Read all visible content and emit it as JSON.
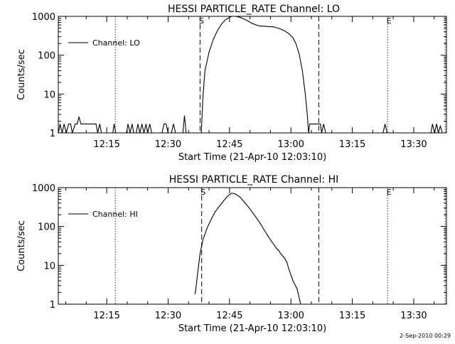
{
  "footer": {
    "timestamp": "2-Sep-2010 00:29"
  },
  "chart_data": [
    {
      "type": "line",
      "title": "HESSI PARTICLE_RATE Channel: LO",
      "xlabel": "Start Time (21-Apr-10 12:03:10)",
      "ylabel": "Counts/sec",
      "x_unit": "minutes after 12:00 UT",
      "xlim": [
        3.17,
        98
      ],
      "x_ticks": [
        15,
        30,
        45,
        60,
        75,
        90
      ],
      "x_tick_labels": [
        "12:15",
        "12:30",
        "12:45",
        "13:00",
        "13:15",
        "13:30"
      ],
      "y_scale": "log",
      "ylim": [
        1,
        1000
      ],
      "y_ticks": [
        1,
        10,
        100,
        1000
      ],
      "y_tick_labels": [
        "1",
        "10",
        "100",
        "1000"
      ],
      "grid": false,
      "legend": {
        "position": "top-left",
        "entries": [
          "Channel: LO"
        ]
      },
      "markers": [
        {
          "x": 37.8,
          "style": "dashed",
          "label": "S"
        },
        {
          "x": 66.8,
          "style": "dashed",
          "label": ""
        },
        {
          "x": 17.1,
          "style": "dotted",
          "label": ""
        },
        {
          "x": 83.6,
          "style": "dotted",
          "label": "E"
        },
        {
          "x": 97.7,
          "style": "dotted",
          "label": ""
        }
      ],
      "series": [
        {
          "name": "Channel: LO",
          "points": [
            [
              3.2,
              1
            ],
            [
              3.6,
              1.7
            ],
            [
              4.1,
              1
            ],
            [
              4.6,
              1.7
            ],
            [
              5.1,
              1
            ],
            [
              5.7,
              1.7
            ],
            [
              6.2,
              1.7
            ],
            [
              6.6,
              1
            ],
            [
              7.3,
              1.7
            ],
            [
              7.8,
              1.7
            ],
            [
              8.2,
              2.6
            ],
            [
              8.7,
              1.7
            ],
            [
              12.4,
              1.7
            ],
            [
              12.8,
              1
            ],
            [
              13.3,
              1.7
            ],
            [
              13.7,
              1
            ],
            [
              16.5,
              1
            ],
            [
              16.8,
              1.7
            ],
            [
              17.2,
              1
            ],
            [
              19.8,
              1
            ],
            [
              20.2,
              1.7
            ],
            [
              20.7,
              1
            ],
            [
              21.2,
              1.7
            ],
            [
              21.6,
              1
            ],
            [
              22.2,
              1
            ],
            [
              22.6,
              1.7
            ],
            [
              23.1,
              1
            ],
            [
              23.6,
              1.7
            ],
            [
              24.1,
              1
            ],
            [
              24.6,
              1.7
            ],
            [
              25.0,
              1
            ],
            [
              25.5,
              1.7
            ],
            [
              26.0,
              1
            ],
            [
              28.5,
              1
            ],
            [
              29.0,
              1.7
            ],
            [
              29.5,
              1.7
            ],
            [
              30.0,
              1
            ],
            [
              30.8,
              1
            ],
            [
              31.3,
              1.7
            ],
            [
              31.8,
              1
            ],
            [
              33.6,
              1
            ],
            [
              34.0,
              2.8
            ],
            [
              34.4,
              1
            ],
            [
              36.5,
              1
            ],
            [
              37.0,
              1
            ],
            [
              37.6,
              1
            ],
            [
              38.1,
              1
            ],
            [
              38.5,
              8
            ],
            [
              39.0,
              40
            ],
            [
              40.0,
              120
            ],
            [
              41.0,
              250
            ],
            [
              42.0,
              420
            ],
            [
              43.0,
              620
            ],
            [
              44.0,
              820
            ],
            [
              45.5,
              1000
            ],
            [
              46.5,
              1000
            ],
            [
              47.5,
              950
            ],
            [
              48.5,
              860
            ],
            [
              49.5,
              760
            ],
            [
              50.5,
              660
            ],
            [
              51.5,
              600
            ],
            [
              52.5,
              560
            ],
            [
              53.5,
              560
            ],
            [
              54.5,
              540
            ],
            [
              55.5,
              540
            ],
            [
              56.5,
              510
            ],
            [
              57.5,
              470
            ],
            [
              58.5,
              420
            ],
            [
              59.5,
              360
            ],
            [
              60.5,
              280
            ],
            [
              61.2,
              200
            ],
            [
              62.0,
              110
            ],
            [
              62.8,
              40
            ],
            [
              63.5,
              10
            ],
            [
              64.0,
              3
            ],
            [
              64.3,
              1
            ],
            [
              64.6,
              1.7
            ],
            [
              67.2,
              1.7
            ],
            [
              67.5,
              1
            ],
            [
              68.0,
              1.7
            ],
            [
              68.5,
              1
            ],
            [
              82.5,
              1
            ],
            [
              83.0,
              1.7
            ],
            [
              83.5,
              1
            ],
            [
              94.2,
              1
            ],
            [
              94.6,
              1.7
            ],
            [
              95.1,
              1
            ],
            [
              95.6,
              1.7
            ],
            [
              96.0,
              1
            ],
            [
              96.5,
              1.5
            ],
            [
              97.0,
              1
            ]
          ]
        }
      ]
    },
    {
      "type": "line",
      "title": "HESSI PARTICLE_RATE Channel: HI",
      "xlabel": "Start Time (21-Apr-10 12:03:10)",
      "ylabel": "Counts/sec",
      "x_unit": "minutes after 12:00 UT",
      "xlim": [
        3.17,
        98
      ],
      "x_ticks": [
        15,
        30,
        45,
        60,
        75,
        90
      ],
      "x_tick_labels": [
        "12:15",
        "12:30",
        "12:45",
        "13:00",
        "13:15",
        "13:30"
      ],
      "y_scale": "log",
      "ylim": [
        1,
        1000
      ],
      "y_ticks": [
        1,
        10,
        100,
        1000
      ],
      "y_tick_labels": [
        "1",
        "10",
        "100",
        "1000"
      ],
      "grid": false,
      "legend": {
        "position": "top-left",
        "entries": [
          "Channel: HI"
        ]
      },
      "markers": [
        {
          "x": 38.2,
          "style": "dashed",
          "label": "S"
        },
        {
          "x": 66.8,
          "style": "dashed",
          "label": ""
        },
        {
          "x": 17.1,
          "style": "dotted",
          "label": ""
        },
        {
          "x": 83.6,
          "style": "dotted",
          "label": "E"
        },
        {
          "x": 97.7,
          "style": "dotted",
          "label": ""
        }
      ],
      "series": [
        {
          "name": "Channel: HI",
          "points": [
            [
              36.6,
              1.8
            ],
            [
              37.2,
              6
            ],
            [
              37.8,
              20
            ],
            [
              38.5,
              45
            ],
            [
              39.5,
              90
            ],
            [
              40.5,
              150
            ],
            [
              41.5,
              240
            ],
            [
              42.5,
              330
            ],
            [
              43.5,
              450
            ],
            [
              44.5,
              600
            ],
            [
              45.5,
              720
            ],
            [
              46.3,
              700
            ],
            [
              47.5,
              580
            ],
            [
              48.5,
              440
            ],
            [
              49.5,
              330
            ],
            [
              50.5,
              240
            ],
            [
              51.5,
              170
            ],
            [
              52.5,
              120
            ],
            [
              53.5,
              80
            ],
            [
              54.5,
              55
            ],
            [
              55.5,
              38
            ],
            [
              56.5,
              27
            ],
            [
              57.0,
              24
            ],
            [
              57.5,
              20
            ],
            [
              58.5,
              15
            ],
            [
              59.0,
              12
            ],
            [
              59.5,
              8
            ],
            [
              60.5,
              4
            ],
            [
              61.5,
              2.5
            ],
            [
              62.2,
              1.2
            ],
            [
              62.4,
              1
            ]
          ]
        }
      ]
    }
  ]
}
